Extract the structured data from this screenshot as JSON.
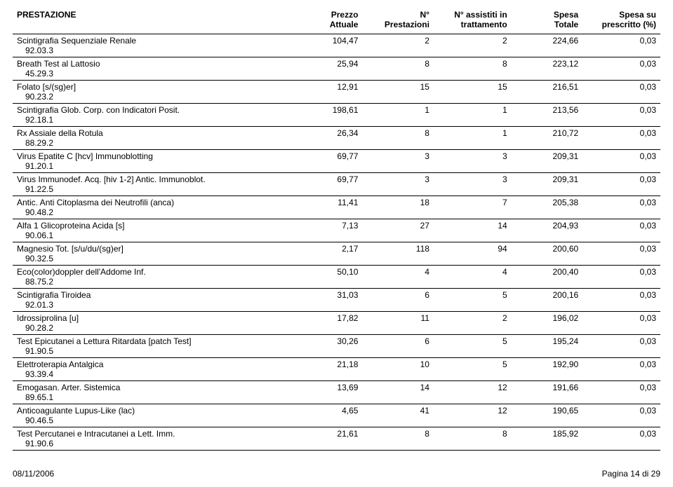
{
  "columns": [
    {
      "line1": "PRESTAZIONE",
      "line2": "",
      "align": "left"
    },
    {
      "line1": "Prezzo",
      "line2": "Attuale",
      "align": "right"
    },
    {
      "line1": "N°",
      "line2": "Prestazioni",
      "align": "right"
    },
    {
      "line1": "N° assistiti in",
      "line2": "trattamento",
      "align": "right"
    },
    {
      "line1": "Spesa",
      "line2": "Totale",
      "align": "right"
    },
    {
      "line1": "Spesa su",
      "line2": "prescritto (%)",
      "align": "right"
    }
  ],
  "rows": [
    {
      "name": "Scintigrafia Sequenziale Renale",
      "code": "92.03.3",
      "prezzo": "104,47",
      "npres": "2",
      "nassist": "2",
      "spesa": "224,66",
      "perc": "0,03"
    },
    {
      "name": "Breath Test al Lattosio",
      "code": "45.29.3",
      "prezzo": "25,94",
      "npres": "8",
      "nassist": "8",
      "spesa": "223,12",
      "perc": "0,03"
    },
    {
      "name": "Folato [s/(sg)er]",
      "code": "90.23.2",
      "prezzo": "12,91",
      "npres": "15",
      "nassist": "15",
      "spesa": "216,51",
      "perc": "0,03"
    },
    {
      "name": "Scintigrafia Glob. Corp. con Indicatori Posit.",
      "code": "92.18.1",
      "prezzo": "198,61",
      "npres": "1",
      "nassist": "1",
      "spesa": "213,56",
      "perc": "0,03"
    },
    {
      "name": "Rx Assiale della Rotula",
      "code": "88.29.2",
      "prezzo": "26,34",
      "npres": "8",
      "nassist": "1",
      "spesa": "210,72",
      "perc": "0,03"
    },
    {
      "name": "Virus Epatite C [hcv] Immunoblotting",
      "code": "91.20.1",
      "prezzo": "69,77",
      "npres": "3",
      "nassist": "3",
      "spesa": "209,31",
      "perc": "0,03"
    },
    {
      "name": "Virus Immunodef. Acq. [hiv 1-2] Antic. Immunoblot.",
      "code": "91.22.5",
      "prezzo": "69,77",
      "npres": "3",
      "nassist": "3",
      "spesa": "209,31",
      "perc": "0,03"
    },
    {
      "name": "Antic. Anti Citoplasma dei Neutrofili (anca)",
      "code": "90.48.2",
      "prezzo": "11,41",
      "npres": "18",
      "nassist": "7",
      "spesa": "205,38",
      "perc": "0,03"
    },
    {
      "name": "Alfa 1 Glicoproteina Acida [s]",
      "code": "90.06.1",
      "prezzo": "7,13",
      "npres": "27",
      "nassist": "14",
      "spesa": "204,93",
      "perc": "0,03"
    },
    {
      "name": "Magnesio Tot. [s/u/du/(sg)er]",
      "code": "90.32.5",
      "prezzo": "2,17",
      "npres": "118",
      "nassist": "94",
      "spesa": "200,60",
      "perc": "0,03"
    },
    {
      "name": "Eco(color)doppler dell'Addome Inf.",
      "code": "88.75.2",
      "prezzo": "50,10",
      "npres": "4",
      "nassist": "4",
      "spesa": "200,40",
      "perc": "0,03"
    },
    {
      "name": "Scintigrafia Tiroidea",
      "code": "92.01.3",
      "prezzo": "31,03",
      "npres": "6",
      "nassist": "5",
      "spesa": "200,16",
      "perc": "0,03"
    },
    {
      "name": "Idrossiprolina [u]",
      "code": "90.28.2",
      "prezzo": "17,82",
      "npres": "11",
      "nassist": "2",
      "spesa": "196,02",
      "perc": "0,03"
    },
    {
      "name": "Test Epicutanei a Lettura Ritardata [patch Test]",
      "code": "91.90.5",
      "prezzo": "30,26",
      "npres": "6",
      "nassist": "5",
      "spesa": "195,24",
      "perc": "0,03"
    },
    {
      "name": "Elettroterapia Antalgica",
      "code": "93.39.4",
      "prezzo": "21,18",
      "npres": "10",
      "nassist": "5",
      "spesa": "192,90",
      "perc": "0,03"
    },
    {
      "name": "Emogasan. Arter. Sistemica",
      "code": "89.65.1",
      "prezzo": "13,69",
      "npres": "14",
      "nassist": "12",
      "spesa": "191,66",
      "perc": "0,03"
    },
    {
      "name": "Anticoagulante Lupus-Like (lac)",
      "code": "90.46.5",
      "prezzo": "4,65",
      "npres": "41",
      "nassist": "12",
      "spesa": "190,65",
      "perc": "0,03"
    },
    {
      "name": "Test Percutanei e Intracutanei a Lett. Imm.",
      "code": "91.90.6",
      "prezzo": "21,61",
      "npres": "8",
      "nassist": "8",
      "spesa": "185,92",
      "perc": "0,03"
    }
  ],
  "footer": {
    "date": "08/11/2006",
    "page": "Pagina 14 di 29"
  }
}
